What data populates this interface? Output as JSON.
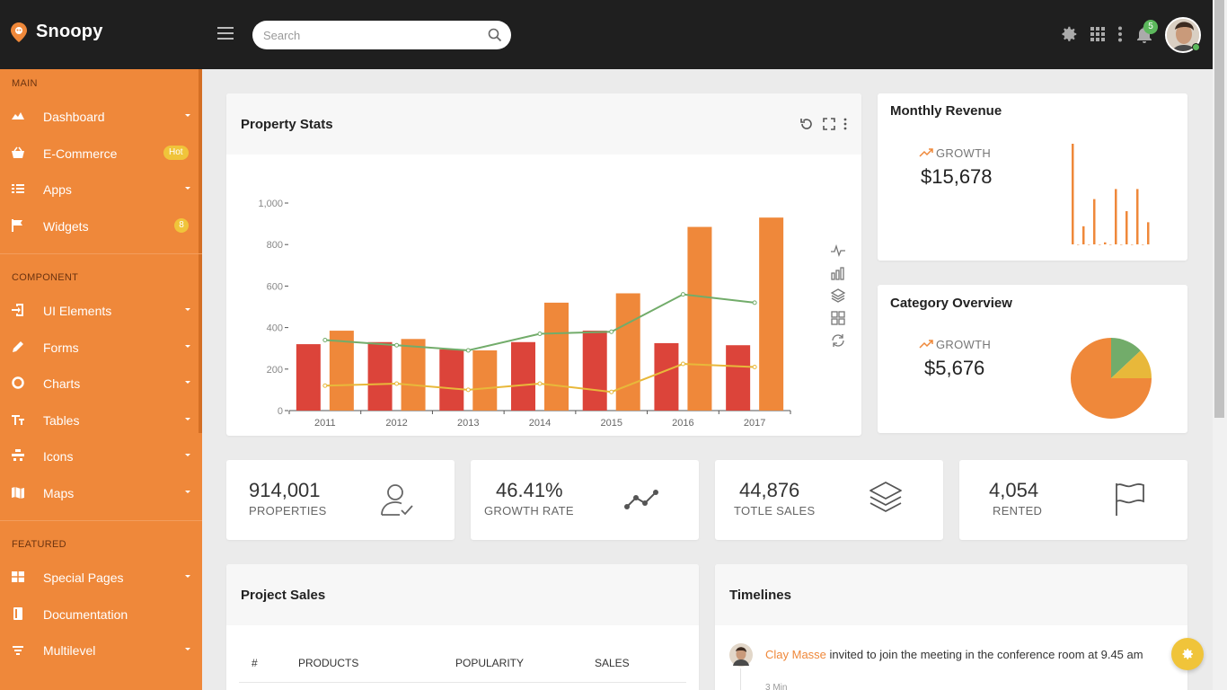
{
  "brand": {
    "name": "Snoopy"
  },
  "search": {
    "placeholder": "Search"
  },
  "topbar": {
    "notification_count": "5"
  },
  "sidebar": {
    "sections": [
      {
        "title": "MAIN",
        "items": [
          {
            "label": "Dashboard",
            "icon": "dashboard-icon",
            "caret": true
          },
          {
            "label": "E-Commerce",
            "icon": "basket-icon",
            "badge": "Hot"
          },
          {
            "label": "Apps",
            "icon": "apps-icon",
            "caret": true
          },
          {
            "label": "Widgets",
            "icon": "flag-icon",
            "badge": "8"
          }
        ]
      },
      {
        "title": "COMPONENT",
        "items": [
          {
            "label": "UI Elements",
            "icon": "login-icon",
            "caret": true
          },
          {
            "label": "Forms",
            "icon": "pencil-icon",
            "caret": true
          },
          {
            "label": "Charts",
            "icon": "pie-icon",
            "caret": true
          },
          {
            "label": "Tables",
            "icon": "table-icon",
            "caret": true
          },
          {
            "label": "Icons",
            "icon": "icons-icon",
            "caret": true
          },
          {
            "label": "Maps",
            "icon": "map-icon",
            "caret": true
          }
        ]
      },
      {
        "title": "FEATURED",
        "items": [
          {
            "label": "Special Pages",
            "icon": "pages-icon",
            "caret": true
          },
          {
            "label": "Documentation",
            "icon": "book-icon"
          },
          {
            "label": "Multilevel",
            "icon": "list-icon",
            "caret": true
          }
        ]
      }
    ]
  },
  "property_stats": {
    "title": "Property Stats"
  },
  "monthly_revenue": {
    "title": "Monthly Revenue",
    "growth_label": "GROWTH",
    "value": "$15,678"
  },
  "category_overview": {
    "title": "Category Overview",
    "growth_label": "GROWTH",
    "value": "$5,676"
  },
  "stats": [
    {
      "value": "914,001",
      "label": "PROPERTIES",
      "icon": "user-check-icon"
    },
    {
      "value": "46.41%",
      "label": "GROWTH RATE",
      "icon": "trend-line-icon"
    },
    {
      "value": "44,876",
      "label": "TOTLE SALES",
      "icon": "layers-icon"
    },
    {
      "value": "4,054",
      "label": "RENTED",
      "icon": "flag-outline-icon"
    }
  ],
  "project_sales": {
    "title": "Project Sales",
    "columns": [
      "#",
      "PRODUCTS",
      "POPULARITY",
      "SALES"
    ]
  },
  "timelines": {
    "title": "Timelines",
    "entries": [
      {
        "name": "Clay Masse",
        "text": "invited to join the meeting in the conference room at 9.45 am",
        "time": "3 Min"
      }
    ]
  },
  "colors": {
    "accent": "#ef883a",
    "red": "#dc443a",
    "orange": "#ef883a",
    "green": "#72ac6a",
    "yellow": "#e8b83a"
  },
  "chart_data": [
    {
      "type": "bar",
      "categories": [
        "2011",
        "2012",
        "2013",
        "2014",
        "2015",
        "2016",
        "2017"
      ],
      "ylim": [
        0,
        1000
      ],
      "yticks": [
        "0",
        "200",
        "400",
        "600",
        "800",
        "1,000"
      ],
      "series": [
        {
          "type": "bar",
          "values": [
            320,
            330,
            295,
            330,
            385,
            325,
            315
          ],
          "color": "#dc443a"
        },
        {
          "type": "bar",
          "values": [
            385,
            345,
            290,
            520,
            565,
            885,
            930
          ],
          "color": "#ef883a"
        },
        {
          "type": "line",
          "values": [
            340,
            315,
            290,
            370,
            380,
            560,
            520
          ],
          "color": "#72ac6a"
        },
        {
          "type": "line",
          "values": [
            120,
            130,
            100,
            130,
            90,
            225,
            210
          ],
          "color": "#e8b83a"
        }
      ]
    },
    {
      "type": "bar",
      "values": [
        100,
        0,
        18,
        0,
        45,
        0,
        2,
        0,
        55,
        0,
        33,
        0,
        55,
        0,
        22
      ],
      "color": "#ef883a"
    },
    {
      "type": "pie",
      "values": [
        75,
        13,
        12
      ],
      "colors": [
        "#ef883a",
        "#72ac6a",
        "#e8b83a"
      ]
    }
  ]
}
